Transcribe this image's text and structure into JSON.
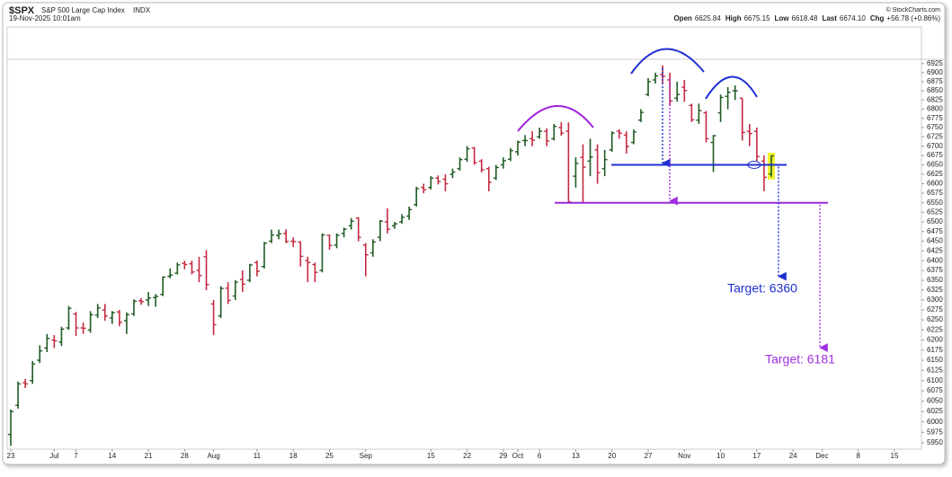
{
  "chart_data": {
    "type": "ohlc",
    "title": "$SPX",
    "subtitle": "S&P 500 Large Cap Index",
    "exchange": "INDX",
    "date": "19-Nov-2025 10:01am",
    "credit": "© StockCharts.com",
    "quote": [
      {
        "label": "Open",
        "value": "6625.84"
      },
      {
        "label": "High",
        "value": "6675.15"
      },
      {
        "label": "Low",
        "value": "6618.48"
      },
      {
        "label": "Last",
        "value": "6674.10"
      },
      {
        "label": "Chg",
        "value": "+56.78 (+0.86%)"
      }
    ],
    "log_scale": true,
    "grid": false,
    "up_color": "#1f5a22",
    "down_color": "#c42a40",
    "ylim": [
      5935,
      6932
    ],
    "yticks": [
      5950,
      5975,
      6000,
      6025,
      6050,
      6075,
      6100,
      6125,
      6150,
      6175,
      6200,
      6225,
      6250,
      6275,
      6300,
      6325,
      6350,
      6375,
      6400,
      6425,
      6450,
      6475,
      6500,
      6525,
      6550,
      6575,
      6600,
      6625,
      6650,
      6675,
      6700,
      6725,
      6750,
      6775,
      6800,
      6825,
      6850,
      6875,
      6900,
      6925
    ],
    "categories": [
      "23",
      null,
      null,
      null,
      null,
      null,
      "Jul",
      null,
      null,
      "7",
      null,
      null,
      null,
      null,
      "14",
      null,
      null,
      null,
      null,
      "21",
      null,
      null,
      null,
      null,
      "28",
      null,
      null,
      null,
      "Aug",
      null,
      null,
      null,
      null,
      null,
      "11",
      null,
      null,
      null,
      null,
      "18",
      null,
      null,
      null,
      null,
      "25",
      null,
      null,
      null,
      null,
      "Sep",
      null,
      null,
      null,
      null,
      null,
      null,
      null,
      null,
      "15",
      null,
      null,
      null,
      null,
      "22",
      null,
      null,
      null,
      null,
      "29",
      null,
      "Oct",
      null,
      null,
      "6",
      null,
      null,
      null,
      null,
      "13",
      null,
      null,
      null,
      null,
      "20",
      null,
      null,
      null,
      null,
      "27",
      null,
      null,
      null,
      null,
      "Nov",
      null,
      null,
      null,
      null,
      "10",
      null,
      null,
      null,
      null,
      "17",
      null,
      null,
      null,
      null,
      "24",
      null,
      null,
      null,
      "Dec",
      null,
      null,
      null,
      null,
      "8",
      null,
      null,
      null,
      null,
      "15",
      null,
      null,
      null,
      null
    ],
    "open": [
      5970,
      6040,
      6095,
      6100,
      6150,
      6180,
      6200,
      6195,
      6230,
      6265,
      6230,
      6225,
      6262,
      6275,
      6255,
      6270,
      6248,
      6265,
      6298,
      6300,
      6306,
      6314,
      6360,
      6368,
      6393,
      6392,
      6375,
      6410,
      6290,
      6260,
      6330,
      6310,
      6352,
      6350,
      6395,
      6385,
      6450,
      6465,
      6470,
      6450,
      6448,
      6400,
      6390,
      6375,
      6465,
      6440,
      6470,
      6490,
      6510,
      6440,
      6420,
      6460,
      6500,
      6490,
      6500,
      6515,
      6545,
      6590,
      6590,
      6615,
      6612,
      6625,
      6640,
      6665,
      6695,
      6660,
      6640,
      6615,
      6650,
      6665,
      6685,
      6715,
      6720,
      6725,
      6740,
      6720,
      6750,
      6740,
      6620,
      6670,
      6660,
      6690,
      6640,
      6690,
      6740,
      6730,
      6710,
      6770,
      6840,
      6880,
      6895,
      6880,
      6830,
      6860,
      6810,
      6770,
      6790,
      6710,
      6790,
      6835,
      6850,
      6830,
      6740,
      6740,
      6660,
      6625.84,
      null,
      null,
      null,
      null,
      null,
      null,
      null,
      null,
      null,
      null,
      null,
      null,
      null,
      null,
      null,
      null,
      null,
      null,
      null,
      null,
      null
    ],
    "high": [
      6030,
      6098,
      6104,
      6148,
      6187,
      6215,
      6212,
      6233,
      6285,
      6270,
      6243,
      6272,
      6290,
      6290,
      6272,
      6275,
      6269,
      6302,
      6305,
      6320,
      6315,
      6360,
      6380,
      6395,
      6400,
      6400,
      6410,
      6427,
      6300,
      6335,
      6345,
      6350,
      6375,
      6392,
      6400,
      6448,
      6480,
      6480,
      6481,
      6460,
      6450,
      6410,
      6395,
      6470,
      6467,
      6470,
      6485,
      6510,
      6512,
      6445,
      6455,
      6505,
      6535,
      6500,
      6520,
      6540,
      6592,
      6600,
      6620,
      6622,
      6625,
      6640,
      6670,
      6700,
      6698,
      6665,
      6645,
      6650,
      6670,
      6695,
      6715,
      6730,
      6740,
      6750,
      6748,
      6760,
      6765,
      6764,
      6670,
      6705,
      6720,
      6705,
      6690,
      6740,
      6745,
      6740,
      6745,
      6800,
      6885,
      6900,
      6920,
      6900,
      6875,
      6880,
      6815,
      6815,
      6795,
      6730,
      6840,
      6860,
      6865,
      6830,
      6760,
      6750,
      6675,
      6675.15,
      null,
      null,
      null,
      null,
      null,
      null,
      null,
      null,
      null,
      null,
      null,
      null,
      null,
      null,
      null,
      null,
      null,
      null,
      null,
      null,
      null
    ],
    "low": [
      5943,
      6032,
      6082,
      6092,
      6143,
      6170,
      6180,
      6185,
      6225,
      6210,
      6215,
      6218,
      6255,
      6248,
      6240,
      6234,
      6215,
      6260,
      6288,
      6285,
      6283,
      6310,
      6355,
      6365,
      6378,
      6365,
      6345,
      6325,
      6212,
      6255,
      6290,
      6300,
      6320,
      6345,
      6360,
      6380,
      6445,
      6455,
      6445,
      6435,
      6385,
      6345,
      6345,
      6370,
      6428,
      6432,
      6460,
      6480,
      6450,
      6360,
      6410,
      6450,
      6470,
      6482,
      6495,
      6505,
      6540,
      6575,
      6585,
      6598,
      6580,
      6615,
      6635,
      6658,
      6650,
      6630,
      6580,
      6610,
      6640,
      6660,
      6675,
      6700,
      6700,
      6720,
      6700,
      6715,
      6728,
      6550,
      6590,
      6550,
      6620,
      6600,
      6620,
      6685,
      6720,
      6680,
      6705,
      6765,
      6835,
      6870,
      6870,
      6810,
      6820,
      6820,
      6765,
      6760,
      6710,
      6631,
      6765,
      6800,
      6825,
      6715,
      6700,
      6660,
      6580,
      6618.48,
      null,
      null,
      null,
      null,
      null,
      null,
      null,
      null,
      null,
      null,
      null,
      null,
      null,
      null,
      null,
      null,
      null,
      null,
      null,
      null,
      null
    ],
    "close": [
      6025,
      6092,
      6092,
      6141,
      6173,
      6204,
      6198,
      6227,
      6279,
      6230,
      6229,
      6263,
      6280,
      6260,
      6268,
      6244,
      6263,
      6297,
      6296,
      6305,
      6309,
      6358,
      6363,
      6389,
      6390,
      6371,
      6362,
      6339,
      6238,
      6329,
      6299,
      6345,
      6340,
      6389,
      6373,
      6445,
      6466,
      6469,
      6449,
      6449,
      6411,
      6395,
      6370,
      6466,
      6439,
      6465,
      6481,
      6502,
      6460,
      6415,
      6448,
      6502,
      6481,
      6495,
      6512,
      6532,
      6587,
      6584,
      6615,
      6606,
      6600,
      6631,
      6664,
      6693,
      6656,
      6637,
      6604,
      6643,
      6661,
      6688,
      6711,
      6715,
      6716,
      6740,
      6714,
      6753,
      6735,
      6552,
      6654,
      6644,
      6671,
      6629,
      6664,
      6735,
      6735,
      6699,
      6738,
      6791,
      6875,
      6891,
      6890,
      6822,
      6840,
      6851,
      6771,
      6796,
      6720,
      6728,
      6832,
      6846,
      6850,
      6737,
      6734,
      6672,
      6617,
      6674.1,
      null,
      null,
      null,
      null,
      null,
      null,
      null,
      null,
      null,
      null,
      null,
      null,
      null,
      null,
      null,
      null,
      null,
      null,
      null,
      null,
      null
    ],
    "levels": [
      {
        "value": 6650,
        "color": "#1f2fd0"
      },
      {
        "value": 6550,
        "color": "#9a28d8"
      }
    ],
    "targets": [
      {
        "text": "Target: 6360",
        "value": 6360,
        "color": "#1f2fd0"
      },
      {
        "text": "Target: 6181",
        "value": 6181,
        "color": "#a030e0"
      }
    ]
  }
}
